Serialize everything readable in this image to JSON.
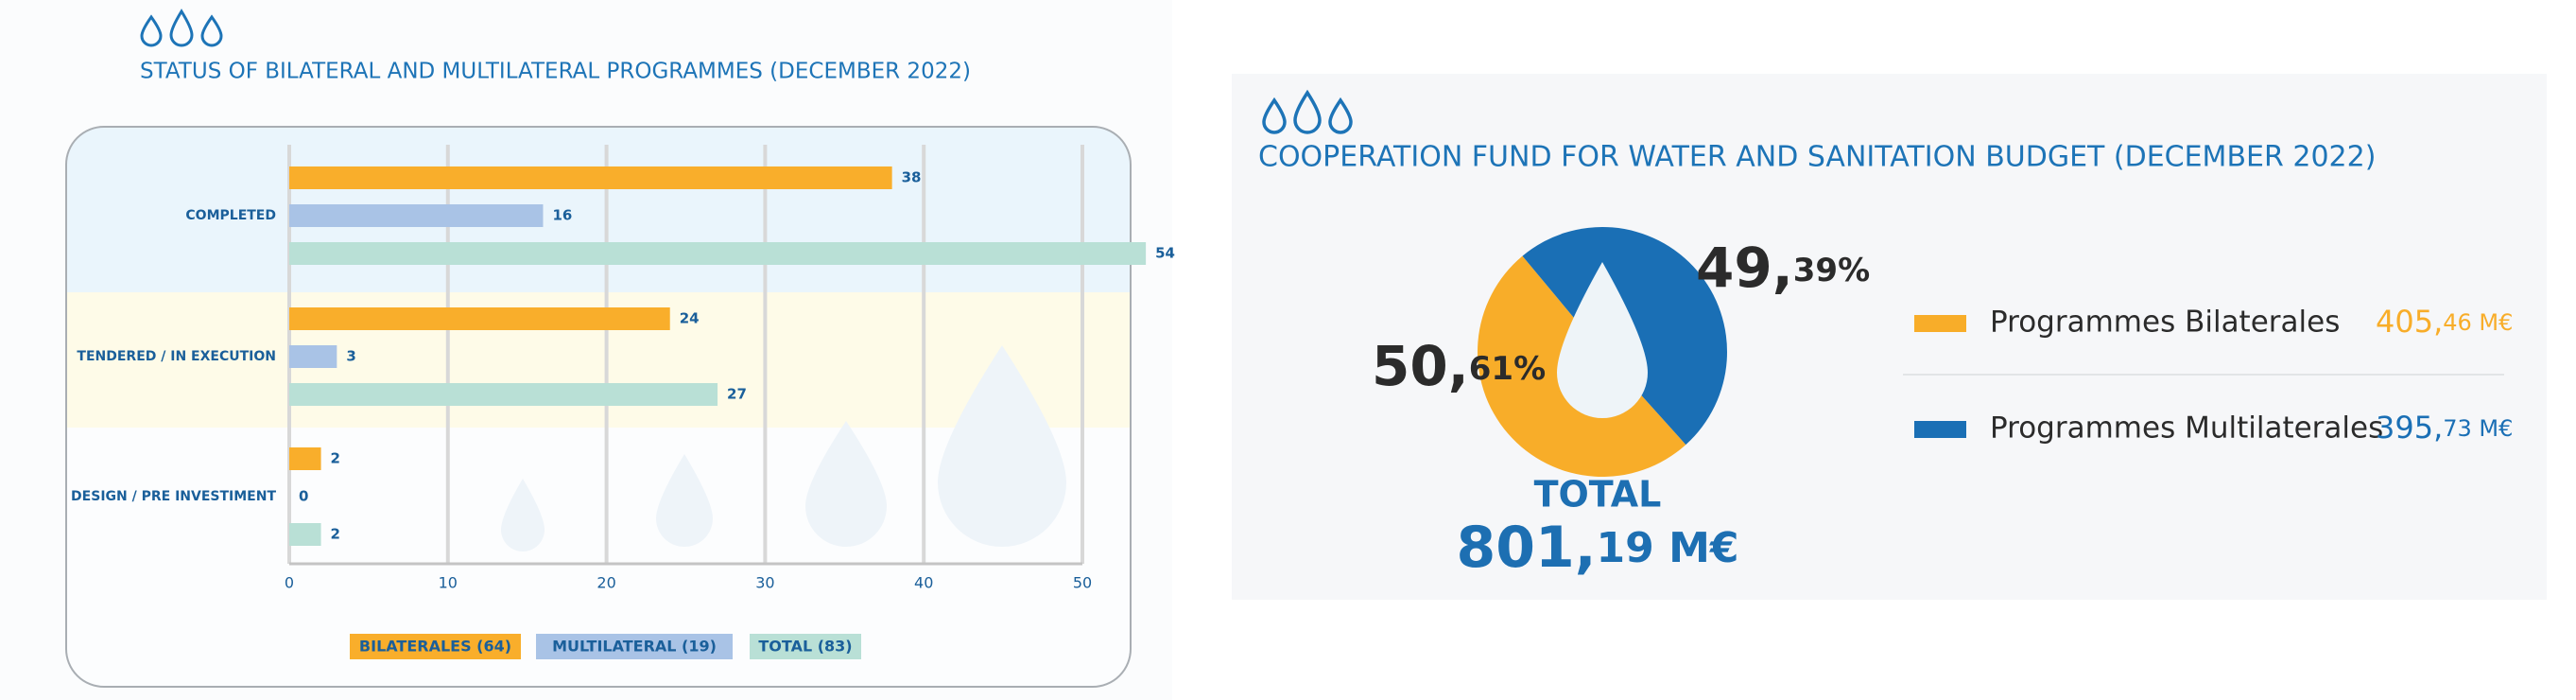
{
  "chart_data": [
    {
      "type": "bar",
      "title": "STATUS OF BILATERAL AND MULTILATERAL PROGRAMMES (DECEMBER 2022)",
      "categories": [
        "COMPLETED",
        "TENDERED / IN EXECUTION",
        "DESIGN / PRE INVESTIMENT"
      ],
      "series": [
        {
          "name": "BILATERALES (64)",
          "color": "#f9ae2b",
          "values": [
            38,
            24,
            2
          ]
        },
        {
          "name": "MULTILATERAL (19)",
          "color": "#a9c3e6",
          "values": [
            16,
            3,
            0
          ]
        },
        {
          "name": "TOTAL (83)",
          "color": "#b9e0d6",
          "values": [
            54,
            27,
            2
          ]
        }
      ],
      "xlim": [
        0,
        50
      ],
      "xticks": [
        0,
        10,
        20,
        30,
        40,
        50
      ],
      "grid": true
    },
    {
      "type": "pie",
      "title": "COOPERATION FUND FOR WATER AND SANITATION BUDGET (DECEMBER 2022)",
      "categories": [
        "Programmes Bilaterales",
        "Programmes Multilaterales"
      ],
      "values": [
        50.61,
        49.39
      ],
      "value_labels": [
        "50,61%",
        "49,39%"
      ],
      "colors": [
        "#f8ad29",
        "#1a6fb5"
      ],
      "amount_labels": [
        "405,46 M€",
        "395,73 M€"
      ],
      "total_title": "TOTAL",
      "total_label": "801,19 M€"
    }
  ]
}
